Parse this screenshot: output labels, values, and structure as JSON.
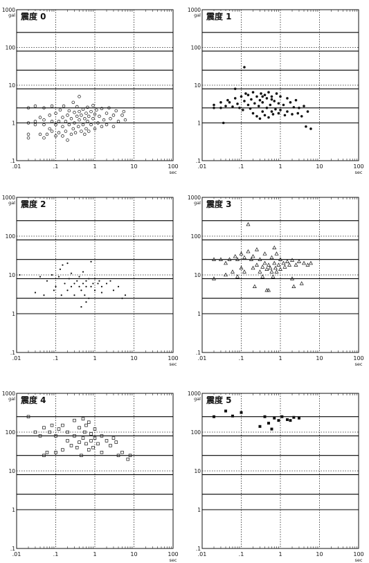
{
  "chart_data": [
    {
      "type": "scatter",
      "title": "震度 0",
      "marker": "open-circle",
      "x_scale": "log",
      "y_scale": "log",
      "xlim": [
        0.01,
        100
      ],
      "ylim": [
        0.1,
        1000
      ],
      "x_ticks": [
        ".01",
        ".1",
        "1",
        "10",
        "100"
      ],
      "y_ticks": [
        ".1",
        "1",
        "10",
        "100",
        "1000"
      ],
      "xunit": "sec",
      "yunit": "gal",
      "ref_lines": [
        1,
        2.5,
        8,
        25,
        80,
        250
      ],
      "points": [
        [
          0.02,
          1
        ],
        [
          0.02,
          0.4
        ],
        [
          0.02,
          0.5
        ],
        [
          0.02,
          2.5
        ],
        [
          0.03,
          0.9
        ],
        [
          0.03,
          1.1
        ],
        [
          0.03,
          2.8
        ],
        [
          0.04,
          0.5
        ],
        [
          0.04,
          1.4
        ],
        [
          0.05,
          0.4
        ],
        [
          0.05,
          0.9
        ],
        [
          0.05,
          1.2
        ],
        [
          0.05,
          2.5
        ],
        [
          0.06,
          0.5
        ],
        [
          0.07,
          0.7
        ],
        [
          0.07,
          1.6
        ],
        [
          0.08,
          0.6
        ],
        [
          0.08,
          1.1
        ],
        [
          0.08,
          2.8
        ],
        [
          0.1,
          0.45
        ],
        [
          0.1,
          0.9
        ],
        [
          0.1,
          1.8
        ],
        [
          0.12,
          0.55
        ],
        [
          0.12,
          1.1
        ],
        [
          0.13,
          2.2
        ],
        [
          0.15,
          0.45
        ],
        [
          0.15,
          0.8
        ],
        [
          0.15,
          1.4
        ],
        [
          0.16,
          2.8
        ],
        [
          0.18,
          0.6
        ],
        [
          0.18,
          1.1
        ],
        [
          0.2,
          0.35
        ],
        [
          0.2,
          1.6
        ],
        [
          0.22,
          0.9
        ],
        [
          0.22,
          2.1
        ],
        [
          0.25,
          0.5
        ],
        [
          0.25,
          1.3
        ],
        [
          0.28,
          0.7
        ],
        [
          0.28,
          3.5
        ],
        [
          0.3,
          1.0
        ],
        [
          0.3,
          1.9
        ],
        [
          0.32,
          0.55
        ],
        [
          0.35,
          1.5
        ],
        [
          0.35,
          2.7
        ],
        [
          0.38,
          0.8
        ],
        [
          0.4,
          1.2
        ],
        [
          0.4,
          2.0
        ],
        [
          0.4,
          5.0
        ],
        [
          0.45,
          0.6
        ],
        [
          0.45,
          1.6
        ],
        [
          0.5,
          0.9
        ],
        [
          0.5,
          2.3
        ],
        [
          0.55,
          1.3
        ],
        [
          0.55,
          0.5
        ],
        [
          0.6,
          1.8
        ],
        [
          0.6,
          0.7
        ],
        [
          0.65,
          1.1
        ],
        [
          0.65,
          2.6
        ],
        [
          0.7,
          1.5
        ],
        [
          0.7,
          0.6
        ],
        [
          0.8,
          2.0
        ],
        [
          0.8,
          0.9
        ],
        [
          0.9,
          1.3
        ],
        [
          0.9,
          2.9
        ],
        [
          1.0,
          0.7
        ],
        [
          1.0,
          1.7
        ],
        [
          1.1,
          2.2
        ],
        [
          1.2,
          1.0
        ],
        [
          1.3,
          1.5
        ],
        [
          1.5,
          0.8
        ],
        [
          1.5,
          2.4
        ],
        [
          1.7,
          1.2
        ],
        [
          2.0,
          1.8
        ],
        [
          2.0,
          0.9
        ],
        [
          2.3,
          2.5
        ],
        [
          2.5,
          1.3
        ],
        [
          3.0,
          1.6
        ],
        [
          3.0,
          0.8
        ],
        [
          3.5,
          2.1
        ],
        [
          4.0,
          1.1
        ],
        [
          5.0,
          1.6
        ],
        [
          5.5,
          2.0
        ],
        [
          6.0,
          1.2
        ]
      ]
    },
    {
      "type": "scatter",
      "title": "震度 1",
      "marker": "filled-circle",
      "x_scale": "log",
      "y_scale": "log",
      "xlim": [
        0.01,
        100
      ],
      "ylim": [
        0.1,
        1000
      ],
      "x_ticks": [
        ".01",
        ".1",
        "1",
        "10",
        "100"
      ],
      "y_ticks": [
        ".1",
        "1",
        "10",
        "100",
        "1000"
      ],
      "xunit": "sec",
      "yunit": "gal",
      "ref_lines": [
        1,
        2.5,
        8,
        25,
        80,
        250
      ],
      "points": [
        [
          0.02,
          2.5
        ],
        [
          0.02,
          3.0
        ],
        [
          0.03,
          2.5
        ],
        [
          0.03,
          3.5
        ],
        [
          0.035,
          1.0
        ],
        [
          0.04,
          2.8
        ],
        [
          0.045,
          4.0
        ],
        [
          0.05,
          3.5
        ],
        [
          0.06,
          2.7
        ],
        [
          0.07,
          4.5
        ],
        [
          0.07,
          8.0
        ],
        [
          0.08,
          3.2
        ],
        [
          0.09,
          2.5
        ],
        [
          0.1,
          5.0
        ],
        [
          0.11,
          2.2
        ],
        [
          0.12,
          3.8
        ],
        [
          0.12,
          30
        ],
        [
          0.13,
          6.0
        ],
        [
          0.15,
          3.0
        ],
        [
          0.15,
          5.5
        ],
        [
          0.17,
          2.4
        ],
        [
          0.18,
          4.2
        ],
        [
          0.2,
          1.8
        ],
        [
          0.2,
          6.5
        ],
        [
          0.22,
          3.3
        ],
        [
          0.25,
          1.5
        ],
        [
          0.25,
          5.0
        ],
        [
          0.28,
          2.8
        ],
        [
          0.3,
          4.0
        ],
        [
          0.3,
          1.3
        ],
        [
          0.32,
          6.0
        ],
        [
          0.35,
          2.0
        ],
        [
          0.35,
          3.5
        ],
        [
          0.4,
          5.5
        ],
        [
          0.4,
          1.6
        ],
        [
          0.45,
          2.5
        ],
        [
          0.45,
          4.5
        ],
        [
          0.5,
          1.4
        ],
        [
          0.5,
          6.5
        ],
        [
          0.55,
          3.0
        ],
        [
          0.6,
          2.0
        ],
        [
          0.6,
          5.0
        ],
        [
          0.65,
          1.7
        ],
        [
          0.7,
          3.8
        ],
        [
          0.75,
          2.3
        ],
        [
          0.8,
          6.0
        ],
        [
          0.9,
          1.8
        ],
        [
          0.9,
          3.3
        ],
        [
          1.0,
          5.0
        ],
        [
          1.0,
          2.2
        ],
        [
          1.2,
          3.0
        ],
        [
          1.3,
          1.6
        ],
        [
          1.5,
          4.5
        ],
        [
          1.5,
          2.0
        ],
        [
          1.8,
          3.5
        ],
        [
          2.0,
          1.7
        ],
        [
          2.2,
          2.6
        ],
        [
          2.5,
          4.0
        ],
        [
          2.8,
          1.8
        ],
        [
          3.0,
          2.5
        ],
        [
          3.5,
          1.5
        ],
        [
          4.0,
          2.8
        ],
        [
          4.5,
          0.8
        ],
        [
          5.0,
          2.0
        ],
        [
          6.0,
          0.7
        ],
        [
          0.35,
          5.0
        ],
        [
          0.6,
          4.2
        ]
      ]
    },
    {
      "type": "scatter",
      "title": "震度 2",
      "marker": "dot",
      "x_scale": "log",
      "y_scale": "log",
      "xlim": [
        0.01,
        100
      ],
      "ylim": [
        0.1,
        1000
      ],
      "x_ticks": [
        ".01",
        ".1",
        "1",
        "10",
        "100"
      ],
      "y_ticks": [
        ".1",
        "1",
        "10",
        "100",
        "1000"
      ],
      "xunit": "sec",
      "yunit": "gal",
      "ref_lines": [
        1,
        2.5,
        8,
        25,
        80,
        250
      ],
      "points": [
        [
          0.012,
          10
        ],
        [
          0.03,
          3.5
        ],
        [
          0.04,
          9
        ],
        [
          0.05,
          3.0
        ],
        [
          0.06,
          7
        ],
        [
          0.08,
          10
        ],
        [
          0.09,
          4
        ],
        [
          0.1,
          5
        ],
        [
          0.12,
          9
        ],
        [
          0.13,
          14
        ],
        [
          0.14,
          3
        ],
        [
          0.15,
          18
        ],
        [
          0.17,
          6
        ],
        [
          0.2,
          4
        ],
        [
          0.2,
          20
        ],
        [
          0.22,
          8
        ],
        [
          0.25,
          5
        ],
        [
          0.25,
          11
        ],
        [
          0.3,
          6
        ],
        [
          0.3,
          3
        ],
        [
          0.35,
          7
        ],
        [
          0.4,
          5
        ],
        [
          0.4,
          9
        ],
        [
          0.45,
          4
        ],
        [
          0.5,
          6
        ],
        [
          0.5,
          12
        ],
        [
          0.55,
          3
        ],
        [
          0.6,
          7
        ],
        [
          0.6,
          5
        ],
        [
          0.7,
          8
        ],
        [
          0.7,
          2.5
        ],
        [
          0.8,
          5
        ],
        [
          0.8,
          22
        ],
        [
          0.9,
          6
        ],
        [
          1.0,
          4
        ],
        [
          1.0,
          8
        ],
        [
          1.2,
          6
        ],
        [
          1.3,
          7
        ],
        [
          1.5,
          5
        ],
        [
          1.5,
          3.5
        ],
        [
          2.0,
          6
        ],
        [
          2.5,
          7
        ],
        [
          3.0,
          4
        ],
        [
          4.0,
          5
        ],
        [
          5.0,
          2.5
        ],
        [
          6.0,
          3
        ],
        [
          0.45,
          1.5
        ],
        [
          0.6,
          2
        ]
      ]
    },
    {
      "type": "scatter",
      "title": "震度 3",
      "marker": "open-triangle",
      "x_scale": "log",
      "y_scale": "log",
      "xlim": [
        0.01,
        100
      ],
      "ylim": [
        0.1,
        1000
      ],
      "x_ticks": [
        ".01",
        ".1",
        "1",
        "10",
        "100"
      ],
      "y_ticks": [
        ".1",
        "1",
        "10",
        "100",
        "1000"
      ],
      "xunit": "sec",
      "yunit": "gal",
      "ref_lines": [
        1,
        2.5,
        8,
        25,
        80,
        250
      ],
      "points": [
        [
          0.02,
          25
        ],
        [
          0.02,
          8
        ],
        [
          0.03,
          25
        ],
        [
          0.04,
          20
        ],
        [
          0.04,
          10
        ],
        [
          0.05,
          25
        ],
        [
          0.06,
          12
        ],
        [
          0.07,
          30
        ],
        [
          0.08,
          25
        ],
        [
          0.08,
          9
        ],
        [
          0.1,
          35
        ],
        [
          0.1,
          15
        ],
        [
          0.12,
          28
        ],
        [
          0.12,
          12
        ],
        [
          0.15,
          200
        ],
        [
          0.15,
          40
        ],
        [
          0.18,
          25
        ],
        [
          0.2,
          15
        ],
        [
          0.2,
          30
        ],
        [
          0.22,
          5
        ],
        [
          0.25,
          18
        ],
        [
          0.25,
          45
        ],
        [
          0.3,
          12
        ],
        [
          0.3,
          25
        ],
        [
          0.35,
          16
        ],
        [
          0.35,
          9
        ],
        [
          0.4,
          20
        ],
        [
          0.4,
          35
        ],
        [
          0.45,
          14
        ],
        [
          0.5,
          18
        ],
        [
          0.5,
          4
        ],
        [
          0.55,
          15
        ],
        [
          0.6,
          12
        ],
        [
          0.6,
          28
        ],
        [
          0.65,
          9
        ],
        [
          0.7,
          50
        ],
        [
          0.7,
          20
        ],
        [
          0.75,
          15
        ],
        [
          0.8,
          35
        ],
        [
          0.8,
          12
        ],
        [
          0.9,
          18
        ],
        [
          1.0,
          25
        ],
        [
          1.0,
          14
        ],
        [
          1.2,
          20
        ],
        [
          1.3,
          16
        ],
        [
          1.5,
          22
        ],
        [
          1.7,
          18
        ],
        [
          2.0,
          24
        ],
        [
          2.0,
          8
        ],
        [
          2.5,
          18
        ],
        [
          3.0,
          22
        ],
        [
          3.5,
          6
        ],
        [
          4.0,
          20
        ],
        [
          5.0,
          18
        ],
        [
          6.0,
          20
        ],
        [
          2.2,
          5
        ],
        [
          0.45,
          4
        ]
      ]
    },
    {
      "type": "scatter",
      "title": "震度 4",
      "marker": "open-square",
      "x_scale": "log",
      "y_scale": "log",
      "xlim": [
        0.01,
        100
      ],
      "ylim": [
        0.1,
        1000
      ],
      "x_ticks": [
        ".01",
        ".1",
        "1",
        "10",
        "100"
      ],
      "y_ticks": [
        ".1",
        "1",
        "10",
        "100",
        "1000"
      ],
      "xunit": "sec",
      "yunit": "gal",
      "ref_lines": [
        1,
        2.5,
        8,
        25,
        80,
        250
      ],
      "points": [
        [
          0.02,
          250
        ],
        [
          0.03,
          100
        ],
        [
          0.04,
          80
        ],
        [
          0.05,
          130
        ],
        [
          0.05,
          25
        ],
        [
          0.06,
          30
        ],
        [
          0.07,
          100
        ],
        [
          0.08,
          150
        ],
        [
          0.1,
          80
        ],
        [
          0.1,
          30
        ],
        [
          0.12,
          120
        ],
        [
          0.15,
          35
        ],
        [
          0.15,
          150
        ],
        [
          0.2,
          100
        ],
        [
          0.2,
          60
        ],
        [
          0.25,
          45
        ],
        [
          0.3,
          200
        ],
        [
          0.3,
          80
        ],
        [
          0.35,
          40
        ],
        [
          0.4,
          130
        ],
        [
          0.4,
          55
        ],
        [
          0.45,
          25
        ],
        [
          0.5,
          220
        ],
        [
          0.5,
          70
        ],
        [
          0.55,
          100
        ],
        [
          0.6,
          50
        ],
        [
          0.6,
          150
        ],
        [
          0.7,
          180
        ],
        [
          0.7,
          35
        ],
        [
          0.8,
          90
        ],
        [
          0.8,
          60
        ],
        [
          0.9,
          40
        ],
        [
          1.0,
          70
        ],
        [
          1.0,
          120
        ],
        [
          1.2,
          50
        ],
        [
          1.5,
          80
        ],
        [
          1.5,
          30
        ],
        [
          2.0,
          60
        ],
        [
          2.5,
          45
        ],
        [
          3.0,
          70
        ],
        [
          3.5,
          55
        ],
        [
          4.0,
          25
        ],
        [
          5.0,
          30
        ],
        [
          7.0,
          20
        ],
        [
          8.0,
          25
        ]
      ]
    },
    {
      "type": "scatter",
      "title": "震度 5",
      "marker": "filled-square",
      "x_scale": "log",
      "y_scale": "log",
      "xlim": [
        0.01,
        100
      ],
      "ylim": [
        0.1,
        1000
      ],
      "x_ticks": [
        ".01",
        ".1",
        "1",
        "10",
        "100"
      ],
      "y_ticks": [
        ".1",
        "1",
        "10",
        "100",
        "1000"
      ],
      "xunit": "sec",
      "yunit": "gal",
      "ref_lines": [
        1,
        2.5,
        8,
        25,
        80,
        250
      ],
      "points": [
        [
          0.02,
          250
        ],
        [
          0.04,
          350
        ],
        [
          0.06,
          260
        ],
        [
          0.1,
          320
        ],
        [
          0.3,
          140
        ],
        [
          0.4,
          250
        ],
        [
          0.5,
          170
        ],
        [
          0.6,
          120
        ],
        [
          0.7,
          230
        ],
        [
          0.9,
          200
        ],
        [
          1.1,
          250
        ],
        [
          1.5,
          210
        ],
        [
          1.8,
          200
        ],
        [
          2.2,
          240
        ],
        [
          3.0,
          230
        ]
      ]
    }
  ]
}
